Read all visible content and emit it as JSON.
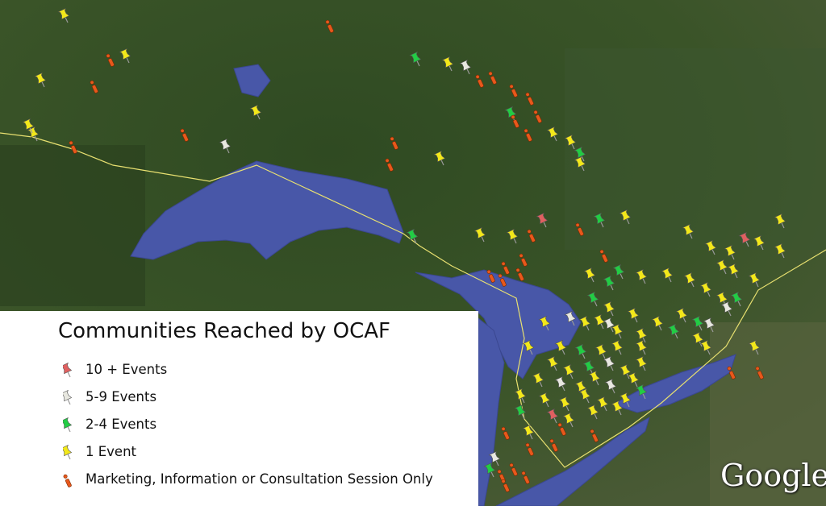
{
  "legend": {
    "title": "Communities Reached by OCAF",
    "items": [
      {
        "label": "10 + Events",
        "color": "#e06060"
      },
      {
        "label": "5-9 Events",
        "color": "#e8e8e0"
      },
      {
        "label": "2-4 Events",
        "color": "#22cc44"
      },
      {
        "label": "1 Event",
        "color": "#f2e81a"
      },
      {
        "label": "Marketing, Information or Consultation Session Only",
        "color": "#e8581c"
      }
    ]
  },
  "watermark": "Google"
}
